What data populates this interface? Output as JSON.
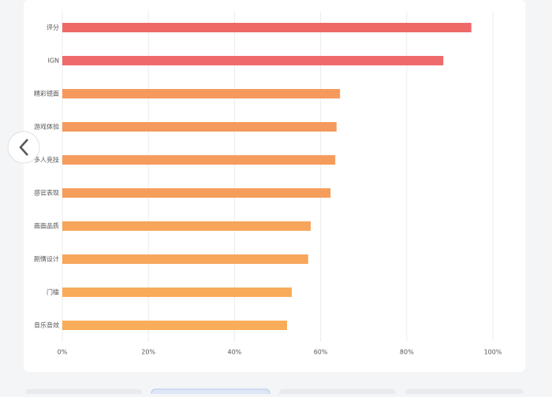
{
  "chart_data": {
    "type": "hbar",
    "categories": [
      "评分",
      "IGN",
      "精彩镜面",
      "游戏体验",
      "多人竞技",
      "感官表现",
      "画面品质",
      "剧情设计",
      "门槛",
      "音乐音效"
    ],
    "values": [
      95,
      88.5,
      64.5,
      63.7,
      63.4,
      62.3,
      57.7,
      57.1,
      53.3,
      52.2
    ],
    "colors": [
      "#ef6868",
      "#ef6b6b",
      "#f59a5c",
      "#f59a5c",
      "#f59c5c",
      "#f59e5c",
      "#f7a55b",
      "#f7a65b",
      "#f9ab5a",
      "#f9ac5a"
    ],
    "xlim": [
      0,
      100
    ],
    "xticks": [
      {
        "value": 0,
        "label": "0%"
      },
      {
        "value": 20,
        "label": "20%"
      },
      {
        "value": 40,
        "label": "40%"
      },
      {
        "value": 60,
        "label": "60%"
      },
      {
        "value": 80,
        "label": "80%"
      },
      {
        "value": 100,
        "label": "100%"
      }
    ],
    "grid": true
  }
}
